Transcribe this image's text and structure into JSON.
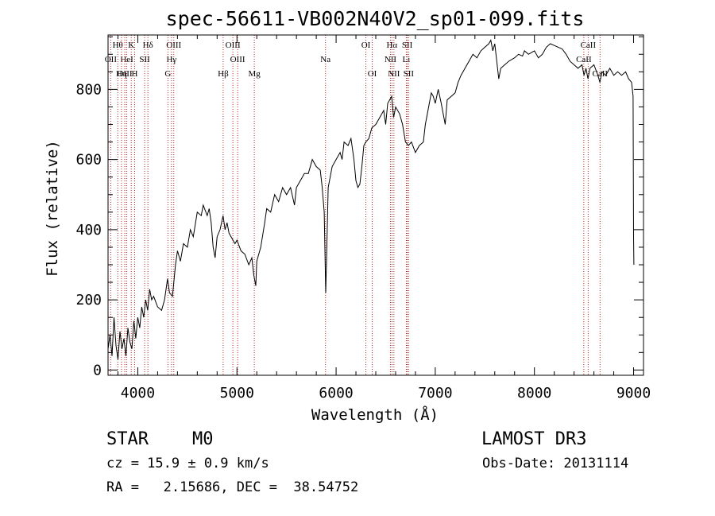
{
  "chart_data": {
    "type": "line",
    "title": "spec-56611-VB002N40V2_sp01-099.fits",
    "xlabel": "Wavelength (Å)",
    "ylabel": "Flux (relative)",
    "xlim": [
      3700,
      9100
    ],
    "ylim": [
      -15,
      955
    ],
    "xticks": [
      4000,
      5000,
      6000,
      7000,
      8000,
      9000
    ],
    "yticks": [
      0,
      200,
      400,
      600,
      800
    ],
    "xtick_labels": [
      "4000",
      "5000",
      "6000",
      "7000",
      "8000",
      "9000"
    ],
    "ytick_labels": [
      "0",
      "200",
      "400",
      "600",
      "800"
    ],
    "series": [
      {
        "name": "spectrum",
        "points": [
          [
            3700,
            60
          ],
          [
            3720,
            100
          ],
          [
            3740,
            40
          ],
          [
            3760,
            150
          ],
          [
            3780,
            70
          ],
          [
            3800,
            30
          ],
          [
            3820,
            110
          ],
          [
            3840,
            60
          ],
          [
            3860,
            90
          ],
          [
            3880,
            40
          ],
          [
            3900,
            120
          ],
          [
            3920,
            80
          ],
          [
            3940,
            60
          ],
          [
            3960,
            140
          ],
          [
            3980,
            90
          ],
          [
            4000,
            150
          ],
          [
            4020,
            120
          ],
          [
            4040,
            180
          ],
          [
            4060,
            150
          ],
          [
            4080,
            200
          ],
          [
            4100,
            170
          ],
          [
            4120,
            230
          ],
          [
            4140,
            200
          ],
          [
            4160,
            210
          ],
          [
            4200,
            180
          ],
          [
            4240,
            170
          ],
          [
            4270,
            200
          ],
          [
            4300,
            260
          ],
          [
            4320,
            220
          ],
          [
            4350,
            210
          ],
          [
            4380,
            300
          ],
          [
            4400,
            340
          ],
          [
            4430,
            310
          ],
          [
            4460,
            360
          ],
          [
            4500,
            350
          ],
          [
            4530,
            400
          ],
          [
            4560,
            380
          ],
          [
            4600,
            450
          ],
          [
            4640,
            440
          ],
          [
            4660,
            470
          ],
          [
            4700,
            440
          ],
          [
            4720,
            460
          ],
          [
            4740,
            420
          ],
          [
            4760,
            350
          ],
          [
            4780,
            320
          ],
          [
            4800,
            380
          ],
          [
            4830,
            400
          ],
          [
            4860,
            440
          ],
          [
            4880,
            400
          ],
          [
            4900,
            420
          ],
          [
            4920,
            390
          ],
          [
            4940,
            380
          ],
          [
            4960,
            370
          ],
          [
            4980,
            360
          ],
          [
            5000,
            370
          ],
          [
            5040,
            340
          ],
          [
            5080,
            330
          ],
          [
            5120,
            300
          ],
          [
            5150,
            320
          ],
          [
            5170,
            270
          ],
          [
            5190,
            240
          ],
          [
            5200,
            310
          ],
          [
            5240,
            350
          ],
          [
            5280,
            420
          ],
          [
            5300,
            460
          ],
          [
            5340,
            450
          ],
          [
            5380,
            500
          ],
          [
            5420,
            480
          ],
          [
            5460,
            520
          ],
          [
            5500,
            500
          ],
          [
            5540,
            520
          ],
          [
            5580,
            470
          ],
          [
            5600,
            520
          ],
          [
            5640,
            540
          ],
          [
            5680,
            560
          ],
          [
            5720,
            560
          ],
          [
            5760,
            600
          ],
          [
            5800,
            580
          ],
          [
            5840,
            570
          ],
          [
            5860,
            520
          ],
          [
            5880,
            450
          ],
          [
            5895,
            220
          ],
          [
            5905,
            330
          ],
          [
            5920,
            520
          ],
          [
            5960,
            580
          ],
          [
            6000,
            600
          ],
          [
            6040,
            620
          ],
          [
            6060,
            600
          ],
          [
            6080,
            650
          ],
          [
            6120,
            640
          ],
          [
            6150,
            660
          ],
          [
            6180,
            600
          ],
          [
            6200,
            540
          ],
          [
            6220,
            520
          ],
          [
            6240,
            530
          ],
          [
            6260,
            580
          ],
          [
            6280,
            640
          ],
          [
            6300,
            650
          ],
          [
            6330,
            660
          ],
          [
            6360,
            690
          ],
          [
            6400,
            700
          ],
          [
            6440,
            720
          ],
          [
            6480,
            740
          ],
          [
            6500,
            700
          ],
          [
            6520,
            760
          ],
          [
            6540,
            770
          ],
          [
            6560,
            780
          ],
          [
            6580,
            720
          ],
          [
            6600,
            750
          ],
          [
            6640,
            730
          ],
          [
            6670,
            700
          ],
          [
            6700,
            650
          ],
          [
            6730,
            640
          ],
          [
            6760,
            650
          ],
          [
            6800,
            620
          ],
          [
            6840,
            640
          ],
          [
            6880,
            650
          ],
          [
            6900,
            700
          ],
          [
            6940,
            760
          ],
          [
            6960,
            790
          ],
          [
            6980,
            780
          ],
          [
            7000,
            760
          ],
          [
            7030,
            800
          ],
          [
            7060,
            760
          ],
          [
            7100,
            700
          ],
          [
            7120,
            770
          ],
          [
            7160,
            780
          ],
          [
            7200,
            790
          ],
          [
            7230,
            820
          ],
          [
            7260,
            840
          ],
          [
            7300,
            860
          ],
          [
            7340,
            880
          ],
          [
            7380,
            900
          ],
          [
            7420,
            890
          ],
          [
            7460,
            910
          ],
          [
            7500,
            920
          ],
          [
            7540,
            930
          ],
          [
            7560,
            940
          ],
          [
            7580,
            910
          ],
          [
            7600,
            930
          ],
          [
            7620,
            880
          ],
          [
            7640,
            830
          ],
          [
            7660,
            860
          ],
          [
            7700,
            870
          ],
          [
            7740,
            880
          ],
          [
            7800,
            890
          ],
          [
            7840,
            900
          ],
          [
            7880,
            895
          ],
          [
            7900,
            910
          ],
          [
            7940,
            900
          ],
          [
            8000,
            910
          ],
          [
            8040,
            890
          ],
          [
            8080,
            900
          ],
          [
            8120,
            920
          ],
          [
            8160,
            930
          ],
          [
            8200,
            925
          ],
          [
            8240,
            920
          ],
          [
            8280,
            915
          ],
          [
            8320,
            900
          ],
          [
            8360,
            880
          ],
          [
            8400,
            870
          ],
          [
            8440,
            860
          ],
          [
            8480,
            870
          ],
          [
            8500,
            840
          ],
          [
            8520,
            860
          ],
          [
            8540,
            830
          ],
          [
            8560,
            860
          ],
          [
            8600,
            870
          ],
          [
            8640,
            840
          ],
          [
            8660,
            820
          ],
          [
            8680,
            850
          ],
          [
            8720,
            840
          ],
          [
            8760,
            860
          ],
          [
            8800,
            840
          ],
          [
            8840,
            850
          ],
          [
            8880,
            840
          ],
          [
            8920,
            850
          ],
          [
            8950,
            830
          ],
          [
            8980,
            820
          ],
          [
            8995,
            780
          ],
          [
            9000,
            380
          ],
          [
            9003,
            300
          ]
        ]
      }
    ],
    "line_markers": [
      {
        "label": "Hθ",
        "wavelength": 3798,
        "row": 0
      },
      {
        "label": "K",
        "wavelength": 3934,
        "row": 0
      },
      {
        "label": "Hδ",
        "wavelength": 4102,
        "row": 0
      },
      {
        "label": "OIII",
        "wavelength": 4363,
        "row": 0
      },
      {
        "label": "OIII",
        "wavelength": 4959,
        "row": 0
      },
      {
        "label": "OI",
        "wavelength": 6300,
        "row": 0
      },
      {
        "label": "Hα",
        "wavelength": 6563,
        "row": 0
      },
      {
        "label": "SII",
        "wavelength": 6717,
        "row": 0
      },
      {
        "label": "CaII",
        "wavelength": 8542,
        "row": 0
      },
      {
        "label": "OII",
        "wavelength": 3727,
        "row": 1
      },
      {
        "label": "HeI",
        "wavelength": 3889,
        "row": 1
      },
      {
        "label": "SII",
        "wavelength": 4069,
        "row": 1
      },
      {
        "label": "Hγ",
        "wavelength": 4340,
        "row": 1
      },
      {
        "label": "OIII",
        "wavelength": 5007,
        "row": 1
      },
      {
        "label": "Na",
        "wavelength": 5893,
        "row": 1
      },
      {
        "label": "NII",
        "wavelength": 6548,
        "row": 1
      },
      {
        "label": "Li",
        "wavelength": 6708,
        "row": 1
      },
      {
        "label": "CaII",
        "wavelength": 8498,
        "row": 1
      },
      {
        "label": "OIII",
        "wavelength": 3869,
        "row": 2
      },
      {
        "label": "Hη",
        "wavelength": 3835,
        "row": 2
      },
      {
        "label": "H",
        "wavelength": 3968,
        "row": 2
      },
      {
        "label": "G",
        "wavelength": 4304,
        "row": 2
      },
      {
        "label": "Hβ",
        "wavelength": 4861,
        "row": 2
      },
      {
        "label": "Mg",
        "wavelength": 5175,
        "row": 2
      },
      {
        "label": "OI",
        "wavelength": 6364,
        "row": 2
      },
      {
        "label": "NII",
        "wavelength": 6583,
        "row": 2
      },
      {
        "label": "SII",
        "wavelength": 6731,
        "row": 2
      },
      {
        "label": "CaII",
        "wavelength": 8662,
        "row": 2
      }
    ]
  },
  "info": {
    "object_class": "STAR",
    "subclass": "M0",
    "survey": "LAMOST DR3",
    "cz": "cz = 15.9 ± 0.9 km/s",
    "obs_date": "Obs-Date: 20131114",
    "coords": "RA =   2.15686, DEC =  38.54752"
  }
}
